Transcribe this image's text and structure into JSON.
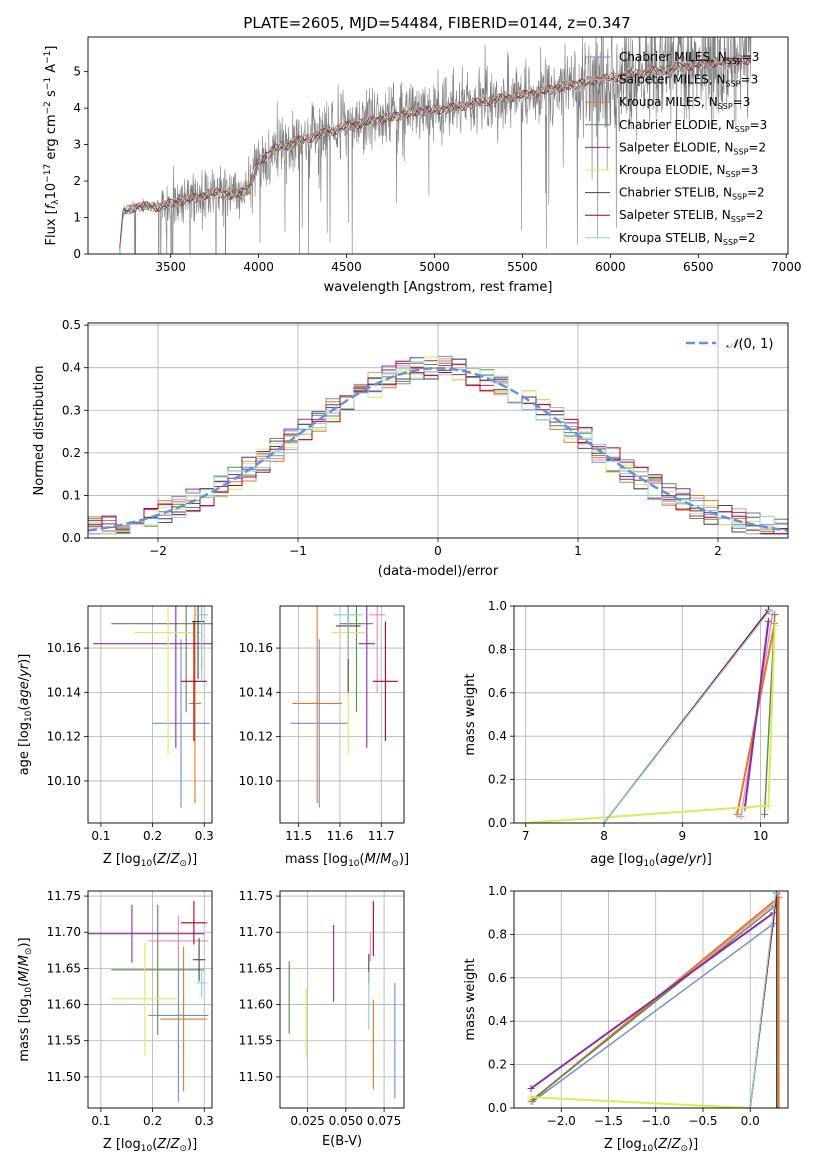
{
  "figure": {
    "title": "PLATE=2605, MJD=54484, FIBERID=0144, z=0.347"
  },
  "models": [
    {
      "name": "Chabrier MILES",
      "nssp": "3",
      "color": "#6a8fd8"
    },
    {
      "name": "Salpeter MILES",
      "nssp": "3",
      "color": "#e88fbb"
    },
    {
      "name": "Kroupa MILES",
      "nssp": "3",
      "color": "#e07a2a"
    },
    {
      "name": "Chabrier ELODIE",
      "nssp": "3",
      "color": "#5b8a4e"
    },
    {
      "name": "Salpeter ELODIE",
      "nssp": "2",
      "color": "#8a2ca8"
    },
    {
      "name": "Kroupa ELODIE",
      "nssp": "3",
      "color": "#d8ec5a"
    },
    {
      "name": "Chabrier STELIB",
      "nssp": "2",
      "color": "#444444"
    },
    {
      "name": "Salpeter STELIB",
      "nssp": "2",
      "color": "#b3001b"
    },
    {
      "name": "Kroupa STELIB",
      "nssp": "2",
      "color": "#88d0d8"
    }
  ],
  "chart_data": [
    {
      "id": "spectrum",
      "type": "line",
      "xlabel": "wavelength [Angstrom, rest frame]",
      "ylabel": "Flux [f_λ 10^-17 erg cm^-2 s^-1 A^-1]",
      "xlim": [
        3030,
        7010
      ],
      "ylim": [
        0,
        5.95
      ],
      "xticks": [
        3500,
        4000,
        4500,
        5000,
        5500,
        6000,
        6500,
        7000
      ],
      "yticks": [
        0,
        1,
        2,
        3,
        4,
        5
      ],
      "data_color": "#808080",
      "data_range": [
        3210,
        6800
      ],
      "continuum": {
        "x": [
          3210,
          3230,
          3300,
          3450,
          3550,
          3650,
          3750,
          3850,
          3950,
          4000,
          4100,
          4300,
          4500,
          4700,
          4900,
          5100,
          5300,
          5500,
          5700,
          5900,
          6100,
          6300,
          6500,
          6700,
          6800
        ],
        "y": [
          0.05,
          1.15,
          1.3,
          1.3,
          1.45,
          1.55,
          1.7,
          1.6,
          1.8,
          2.55,
          2.9,
          3.2,
          3.5,
          3.7,
          3.9,
          4.0,
          4.2,
          4.35,
          4.55,
          4.75,
          4.9,
          5.05,
          5.2,
          5.3,
          5.3
        ]
      },
      "legend": "top-right"
    },
    {
      "id": "residuals",
      "type": "histogram",
      "xlabel": "(data-model)/error",
      "ylabel": "Normed distribution",
      "xlim": [
        -2.5,
        2.5
      ],
      "ylim": [
        0,
        0.505
      ],
      "xticks": [
        -2,
        -1,
        0,
        1,
        2
      ],
      "yticks": [
        0.0,
        0.1,
        0.2,
        0.3,
        0.4,
        0.5
      ],
      "bin_width": 0.1,
      "reference": {
        "name": "N(0,1)",
        "color": "#6a8fd8"
      },
      "legend": "top-right"
    },
    {
      "id": "age-vs-Z",
      "type": "errorbar",
      "xlabel": "Z [log10(Z/Z⊙)]",
      "ylabel": "age [log10(age/yr)]",
      "xlim": [
        0.075,
        0.315
      ],
      "ylim": [
        10.081,
        10.179
      ],
      "xticks": [
        0.1,
        0.2,
        0.3
      ],
      "yticks": [
        10.1,
        10.12,
        10.14,
        10.16
      ],
      "points": [
        {
          "x": 0.255,
          "xerr": 0.055,
          "y": 10.126,
          "yerr": 0.038
        },
        {
          "x": 0.295,
          "xerr": 0.012,
          "y": 10.175,
          "yerr": 0.024
        },
        {
          "x": 0.282,
          "xerr": 0.012,
          "y": 10.135,
          "yerr": 0.045
        },
        {
          "x": 0.265,
          "xerr": 0.145,
          "y": 10.171,
          "yerr": 0.04
        },
        {
          "x": 0.245,
          "xerr": 0.16,
          "y": 10.162,
          "yerr": 0.047
        },
        {
          "x": 0.23,
          "xerr": 0.065,
          "y": 10.167,
          "yerr": 0.055
        },
        {
          "x": 0.288,
          "xerr": 0.012,
          "y": 10.172,
          "yerr": 0.026
        },
        {
          "x": 0.28,
          "xerr": 0.025,
          "y": 10.145,
          "yerr": 0.027
        },
        {
          "x": 0.295,
          "xerr": 0.012,
          "y": 10.175,
          "yerr": 0.03
        }
      ]
    },
    {
      "id": "age-vs-mass",
      "type": "errorbar",
      "xlabel": "mass [log10(M/M⊙)]",
      "xlim": [
        11.455,
        11.755
      ],
      "ylim": [
        10.081,
        10.179
      ],
      "xticks": [
        11.5,
        11.6,
        11.7
      ],
      "yticks": [
        10.1,
        10.12,
        10.14,
        10.16
      ],
      "points": [
        {
          "x": 11.55,
          "xerr": 0.07,
          "y": 10.126,
          "yerr": 0.038
        },
        {
          "x": 11.69,
          "xerr": 0.02,
          "y": 10.175,
          "yerr": 0.035
        },
        {
          "x": 11.545,
          "xerr": 0.06,
          "y": 10.135,
          "yerr": 0.045
        },
        {
          "x": 11.64,
          "xerr": 0.04,
          "y": 10.171,
          "yerr": 0.04
        },
        {
          "x": 11.665,
          "xerr": 0.02,
          "y": 10.162,
          "yerr": 0.047
        },
        {
          "x": 11.62,
          "xerr": 0.04,
          "y": 10.167,
          "yerr": 0.055
        },
        {
          "x": 11.62,
          "xerr": 0.03,
          "y": 10.17,
          "yerr": 0.03
        },
        {
          "x": 11.71,
          "xerr": 0.03,
          "y": 10.145,
          "yerr": 0.027
        },
        {
          "x": 11.62,
          "xerr": 0.035,
          "y": 10.175,
          "yerr": 0.02
        }
      ]
    },
    {
      "id": "mass-weight-vs-age",
      "type": "line",
      "xlabel": "age [log10(age/yr)]",
      "ylabel": "mass weight",
      "xlim": [
        6.85,
        10.35
      ],
      "ylim": [
        0,
        1.0
      ],
      "xticks": [
        7,
        8,
        9,
        10
      ],
      "yticks": [
        0.0,
        0.2,
        0.4,
        0.6,
        0.8,
        1.0
      ],
      "series": [
        {
          "x": [
            8.0,
            10.1
          ],
          "y": [
            0.0,
            0.98
          ]
        },
        {
          "x": [
            9.75,
            10.15
          ],
          "y": [
            0.03,
            0.96
          ]
        },
        {
          "x": [
            9.7,
            10.18
          ],
          "y": [
            0.04,
            0.92
          ]
        },
        {
          "x": [
            10.05,
            10.18
          ],
          "y": [
            0.04,
            0.96
          ]
        },
        {
          "x": [
            9.8,
            10.1
          ],
          "y": [
            0.07,
            0.93
          ]
        },
        {
          "x": [
            7.0,
            10.1,
            10.18
          ],
          "y": [
            0.0,
            0.08,
            0.91
          ]
        },
        {
          "x": [
            8.0,
            10.1
          ],
          "y": [
            0.0,
            0.98
          ]
        },
        {
          "x": [
            8.0,
            10.1
          ],
          "y": [
            0.0,
            0.98
          ]
        },
        {
          "x": [
            8.0,
            10.12
          ],
          "y": [
            0.0,
            0.98
          ]
        }
      ]
    },
    {
      "id": "mass-vs-Z",
      "type": "errorbar",
      "xlabel": "Z [log10(Z/Z⊙)]",
      "ylabel": "mass [log10(M/M⊙)]",
      "xlim": [
        0.075,
        0.315
      ],
      "ylim": [
        11.457,
        11.757
      ],
      "xticks": [
        0.1,
        0.2,
        0.3
      ],
      "yticks": [
        11.5,
        11.55,
        11.6,
        11.65,
        11.7,
        11.75
      ],
      "points": [
        {
          "x": 0.25,
          "xerr": 0.058,
          "y": 11.585,
          "yerr": 0.12
        },
        {
          "x": 0.25,
          "xerr": 0.058,
          "y": 11.688,
          "yerr": 0.035
        },
        {
          "x": 0.26,
          "xerr": 0.045,
          "y": 11.58,
          "yerr": 0.1
        },
        {
          "x": 0.21,
          "xerr": 0.09,
          "y": 11.648,
          "yerr": 0.09
        },
        {
          "x": 0.16,
          "xerr": 0.14,
          "y": 11.698,
          "yerr": 0.04
        },
        {
          "x": 0.185,
          "xerr": 0.065,
          "y": 11.608,
          "yerr": 0.078
        },
        {
          "x": 0.29,
          "xerr": 0.012,
          "y": 11.662,
          "yerr": 0.03
        },
        {
          "x": 0.28,
          "xerr": 0.025,
          "y": 11.713,
          "yerr": 0.03
        },
        {
          "x": 0.295,
          "xerr": 0.01,
          "y": 11.63,
          "yerr": 0.02
        }
      ]
    },
    {
      "id": "mass-vs-EBV",
      "type": "errorbar",
      "xlabel": "E(B-V)",
      "xlim": [
        0.007,
        0.088
      ],
      "ylim": [
        11.457,
        11.757
      ],
      "xticks": [
        0.025,
        0.05,
        0.075
      ],
      "xticklabels": [
        "0.025",
        "0.050",
        "0.075"
      ],
      "yticks": [
        11.5,
        11.55,
        11.6,
        11.65,
        11.7,
        11.75
      ],
      "points": [
        {
          "x": 0.082,
          "y": 11.55,
          "yerr": 0.08
        },
        {
          "x": 0.066,
          "y": 11.68,
          "yerr": 0.02
        },
        {
          "x": 0.068,
          "y": 11.545,
          "yerr": 0.062
        },
        {
          "x": 0.013,
          "y": 11.61,
          "yerr": 0.05
        },
        {
          "x": 0.042,
          "y": 11.657,
          "yerr": 0.053
        },
        {
          "x": 0.024,
          "y": 11.575,
          "yerr": 0.048
        },
        {
          "x": 0.065,
          "y": 11.65,
          "yerr": 0.02
        },
        {
          "x": 0.068,
          "y": 11.705,
          "yerr": 0.038
        },
        {
          "x": 0.065,
          "y": 11.605,
          "yerr": 0.04
        }
      ]
    },
    {
      "id": "mass-weight-vs-Z",
      "type": "line",
      "xlabel": "Z [log10(Z/Z⊙)]",
      "ylabel": "mass weight",
      "xlim": [
        -2.5,
        0.4
      ],
      "ylim": [
        0,
        1.0
      ],
      "xticks": [
        -2.0,
        -1.5,
        -1.0,
        -0.5,
        0.0
      ],
      "yticks": [
        0.0,
        0.2,
        0.4,
        0.6,
        0.8,
        1.0
      ],
      "series": [
        {
          "x": [
            -2.3,
            0.25
          ],
          "y": [
            0.03,
            0.85
          ]
        },
        {
          "x": [
            -2.3,
            0.28
          ],
          "y": [
            0.04,
            0.95
          ]
        },
        {
          "x": [
            -2.32,
            0.3,
            0.3
          ],
          "y": [
            0.03,
            0.97,
            0.0
          ]
        },
        {
          "x": [
            -2.3,
            0.26
          ],
          "y": [
            0.04,
            0.93
          ]
        },
        {
          "x": [
            -2.32,
            0.25
          ],
          "y": [
            0.09,
            0.9
          ]
        },
        {
          "x": [
            -2.32,
            0.0
          ],
          "y": [
            0.05,
            0.0
          ]
        },
        {
          "x": [
            0.0,
            0.28,
            0.28
          ],
          "y": [
            0.0,
            0.99,
            0.0
          ]
        },
        {
          "x": [
            0.0,
            0.28
          ],
          "y": [
            0.0,
            0.99
          ]
        },
        {
          "x": [
            0.0,
            0.27
          ],
          "y": [
            0.0,
            0.99
          ]
        }
      ]
    }
  ]
}
